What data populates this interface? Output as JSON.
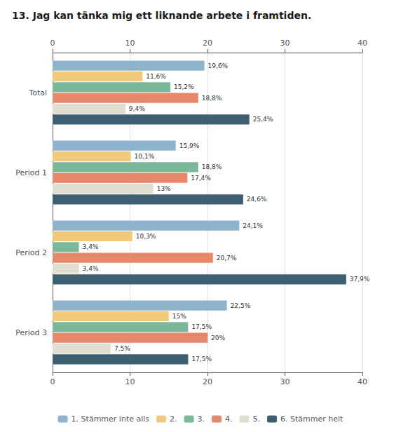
{
  "chart_data": {
    "type": "bar",
    "orientation": "horizontal",
    "title": "13. Jag kan tänka mig ett liknande arbete i framtiden.",
    "categories": [
      "Total",
      "Period 1",
      "Period 2",
      "Period 3"
    ],
    "series": [
      {
        "name": "1. Stämmer inte alls",
        "color": "#8DB4CC",
        "values": [
          19.6,
          15.9,
          24.1,
          22.5
        ],
        "value_labels": [
          "19,6%",
          "15,9%",
          "24,1%",
          "22,5%"
        ]
      },
      {
        "name": "2.",
        "color": "#F2C97A",
        "values": [
          11.6,
          10.1,
          10.3,
          15.0
        ],
        "value_labels": [
          "11,6%",
          "10,1%",
          "10,3%",
          "15%"
        ]
      },
      {
        "name": "3.",
        "color": "#7BB89A",
        "values": [
          15.2,
          18.8,
          3.4,
          17.5
        ],
        "value_labels": [
          "15,2%",
          "18,8%",
          "3,4%",
          "17,5%"
        ]
      },
      {
        "name": "4.",
        "color": "#E8876A",
        "values": [
          18.8,
          17.4,
          20.7,
          20.0
        ],
        "value_labels": [
          "18,8%",
          "17,4%",
          "20,7%",
          "20%"
        ]
      },
      {
        "name": "5.",
        "color": "#E0DED0",
        "values": [
          9.4,
          13.0,
          3.4,
          7.5
        ],
        "value_labels": [
          "9,4%",
          "13%",
          "3,4%",
          "7,5%"
        ]
      },
      {
        "name": "6. Stämmer helt",
        "color": "#3D5F72",
        "values": [
          25.4,
          24.6,
          37.9,
          17.5
        ],
        "value_labels": [
          "25,4%",
          "24,6%",
          "37,9%",
          "17,5%"
        ]
      }
    ],
    "xlim": [
      0,
      40
    ],
    "xticks": [
      0,
      10,
      20,
      30,
      40
    ],
    "grid": true,
    "data_labels": true,
    "legend": "bottom"
  }
}
